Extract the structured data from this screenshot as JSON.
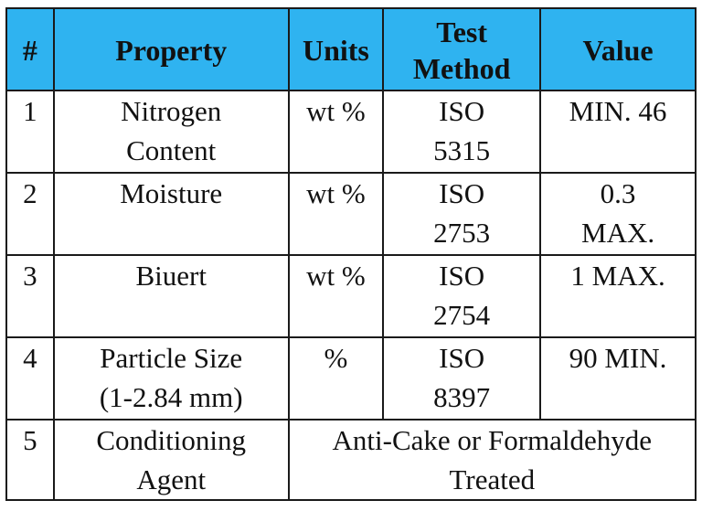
{
  "table": {
    "headers": {
      "num": "#",
      "property": "Property",
      "units": "Units",
      "method_line1": "Test",
      "method_line2": "Method",
      "value": "Value"
    },
    "rows": [
      {
        "num": "1",
        "property": [
          "Nitrogen",
          "Content"
        ],
        "units": "wt %",
        "method": [
          "ISO",
          "5315"
        ],
        "value": [
          "MIN. 46"
        ]
      },
      {
        "num": "2",
        "property": [
          "Moisture"
        ],
        "units": "wt %",
        "method": [
          "ISO",
          "2753"
        ],
        "value": [
          "0.3",
          "MAX."
        ]
      },
      {
        "num": "3",
        "property": [
          "Biuert"
        ],
        "units": "wt %",
        "method": [
          "ISO",
          "2754"
        ],
        "value": [
          "1 MAX."
        ]
      },
      {
        "num": "4",
        "property": [
          "Particle Size",
          "(1-2.84 mm)"
        ],
        "units": "%",
        "method": [
          "ISO",
          "8397"
        ],
        "value": [
          "90 MIN."
        ]
      },
      {
        "num": "5",
        "property": [
          "Conditioning",
          "Agent"
        ],
        "merged": [
          "Anti-Cake or Formaldehyde",
          "Treated"
        ]
      }
    ]
  },
  "colors": {
    "header_bg": "#2fb3f0",
    "border": "#1a1a1a",
    "text": "#111111"
  }
}
